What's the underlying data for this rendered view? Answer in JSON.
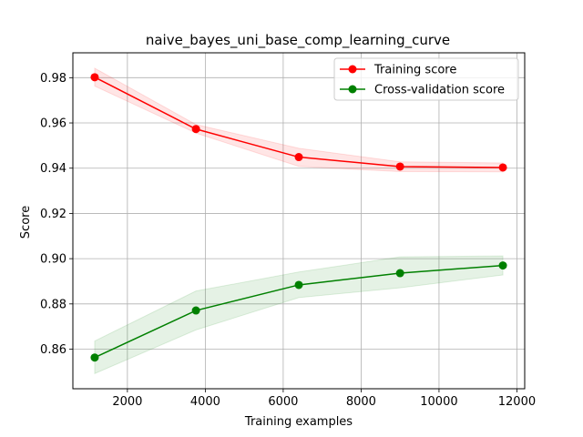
{
  "chart_data": {
    "type": "line",
    "title": "naive_bayes_uni_base_comp_learning_curve",
    "xlabel": "Training examples",
    "ylabel": "Score",
    "xlim": [
      600,
      12200
    ],
    "ylim": [
      0.8425,
      0.991
    ],
    "xticks": [
      2000,
      4000,
      6000,
      8000,
      10000,
      12000
    ],
    "xtick_labels": [
      "2000",
      "4000",
      "6000",
      "8000",
      "10000",
      "12000"
    ],
    "yticks": [
      0.86,
      0.88,
      0.9,
      0.92,
      0.94,
      0.96,
      0.98
    ],
    "ytick_labels": [
      "0.86",
      "0.88",
      "0.90",
      "0.92",
      "0.94",
      "0.96",
      "0.98"
    ],
    "grid": true,
    "legend_position": "top-right",
    "x": [
      1160,
      3760,
      6400,
      9000,
      11640
    ],
    "series": [
      {
        "name": "Training score",
        "color": "#ff0000",
        "band_color": "#ff0000",
        "values": [
          0.9802,
          0.9573,
          0.9449,
          0.9407,
          0.9403
        ],
        "band_lower": [
          0.9763,
          0.9555,
          0.9408,
          0.9385,
          0.9384
        ],
        "band_upper": [
          0.9842,
          0.9593,
          0.9488,
          0.9428,
          0.9423
        ]
      },
      {
        "name": "Cross-validation score",
        "color": "#008000",
        "band_color": "#008000",
        "values": [
          0.8563,
          0.8771,
          0.8884,
          0.8936,
          0.897
        ],
        "band_lower": [
          0.8492,
          0.8685,
          0.8828,
          0.8871,
          0.8928
        ],
        "band_upper": [
          0.8636,
          0.8857,
          0.8941,
          0.9008,
          0.9012
        ]
      }
    ]
  }
}
